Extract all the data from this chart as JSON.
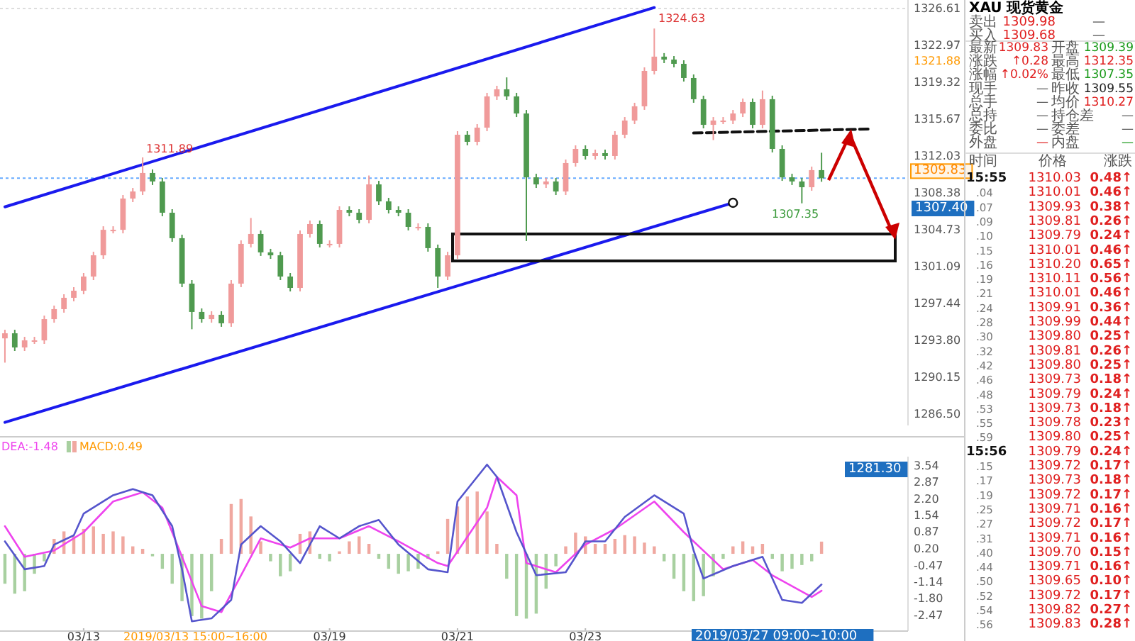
{
  "chart_data": [
    {
      "type": "candlestick",
      "ylim": [
        1285.39,
        1327.45
      ],
      "tick_labels": "y",
      "yticks": [
        {
          "value": 1286.5,
          "label": "1286.50"
        },
        1290.15,
        {
          "value": 1293.8,
          "label": "1293.80"
        },
        1297.44,
        1301.09,
        1304.73,
        1308.38,
        1312.03,
        1315.67,
        1319.32,
        1322.97,
        1326.61
      ],
      "ohlc": [
        [
          1294.0,
          1294.85,
          1291.6,
          1294.5
        ],
        [
          1294.5,
          1294.85,
          1292.75,
          1293.1
        ],
        [
          1293.1,
          1294.15,
          1292.75,
          1293.8
        ],
        [
          1293.8,
          1294.15,
          1293.45,
          1293.8
        ],
        [
          1293.8,
          1296.25,
          1293.45,
          1295.9
        ],
        [
          1295.9,
          1297.24,
          1295.55,
          1296.89
        ],
        [
          1296.89,
          1298.36,
          1296.54,
          1298.01
        ],
        [
          1298.01,
          1299.06,
          1297.66,
          1298.71
        ],
        [
          1298.71,
          1300.46,
          1298.36,
          1300.11
        ],
        [
          1300.11,
          1302.56,
          1299.76,
          1302.21
        ],
        [
          1302.21,
          1305.08,
          1301.86,
          1304.73
        ],
        [
          1304.73,
          1305.08,
          1304.38,
          1304.73
        ],
        [
          1304.73,
          1308.17,
          1304.38,
          1307.82
        ],
        [
          1307.82,
          1308.87,
          1307.47,
          1308.52
        ],
        [
          1308.52,
          1311.89,
          1308.17,
          1310.35
        ],
        [
          1310.35,
          1310.7,
          1309.16,
          1309.51
        ],
        [
          1309.51,
          1309.86,
          1306.07,
          1306.42
        ],
        [
          1306.42,
          1306.77,
          1303.55,
          1303.9
        ],
        [
          1303.9,
          1304.25,
          1299.06,
          1299.41
        ],
        [
          1299.41,
          1299.76,
          1294.9,
          1296.61
        ],
        [
          1296.61,
          1296.96,
          1295.55,
          1295.9
        ],
        [
          1295.9,
          1296.68,
          1295.55,
          1296.33
        ],
        [
          1296.33,
          1296.68,
          1295.14,
          1295.49
        ],
        [
          1295.49,
          1299.76,
          1295.14,
          1299.41
        ],
        [
          1299.41,
          1303.69,
          1299.06,
          1303.34
        ],
        [
          1303.34,
          1305.9,
          1302.99,
          1304.32
        ],
        [
          1304.32,
          1304.67,
          1302.15,
          1302.5
        ],
        [
          1302.5,
          1302.85,
          1301.86,
          1302.21
        ],
        [
          1302.21,
          1302.56,
          1299.76,
          1300.11
        ],
        [
          1300.11,
          1300.46,
          1298.64,
          1298.99
        ],
        [
          1298.99,
          1304.67,
          1298.64,
          1304.32
        ],
        [
          1304.32,
          1305.65,
          1303.97,
          1305.3
        ],
        [
          1305.3,
          1305.65,
          1302.99,
          1303.34
        ],
        [
          1303.34,
          1303.69,
          1302.99,
          1303.34
        ],
        [
          1303.34,
          1307.05,
          1302.99,
          1306.7
        ],
        [
          1306.7,
          1307.05,
          1306.07,
          1306.42
        ],
        [
          1306.42,
          1306.77,
          1305.37,
          1305.72
        ],
        [
          1305.72,
          1310.1,
          1305.37,
          1309.22
        ],
        [
          1309.22,
          1309.57,
          1307.19,
          1307.54
        ],
        [
          1307.54,
          1307.89,
          1306.35,
          1306.7
        ],
        [
          1306.7,
          1307.05,
          1306.07,
          1306.42
        ],
        [
          1306.42,
          1306.77,
          1304.67,
          1305.02
        ],
        [
          1305.02,
          1305.37,
          1304.67,
          1305.02
        ],
        [
          1305.02,
          1305.37,
          1302.57,
          1302.92
        ],
        [
          1302.92,
          1303.27,
          1298.99,
          1300.11
        ],
        [
          1300.11,
          1302.56,
          1299.76,
          1302.21
        ],
        [
          1302.21,
          1314.48,
          1301.86,
          1314.13
        ],
        [
          1314.13,
          1314.48,
          1313.08,
          1313.43
        ],
        [
          1313.43,
          1315.18,
          1313.08,
          1314.83
        ],
        [
          1314.83,
          1318.27,
          1314.48,
          1317.92
        ],
        [
          1317.92,
          1318.97,
          1317.57,
          1318.62
        ],
        [
          1318.62,
          1319.8,
          1317.57,
          1317.92
        ],
        [
          1317.92,
          1318.27,
          1315.88,
          1316.23
        ],
        [
          1316.23,
          1316.58,
          1303.62,
          1309.92
        ],
        [
          1309.92,
          1310.27,
          1308.87,
          1309.22
        ],
        [
          1309.22,
          1309.86,
          1308.87,
          1309.51
        ],
        [
          1309.51,
          1309.86,
          1308.17,
          1308.52
        ],
        [
          1308.52,
          1311.68,
          1308.17,
          1311.33
        ],
        [
          1311.33,
          1313.08,
          1310.98,
          1312.73
        ],
        [
          1312.73,
          1313.08,
          1311.68,
          1312.03
        ],
        [
          1312.03,
          1312.66,
          1311.68,
          1312.31
        ],
        [
          1312.31,
          1312.66,
          1311.68,
          1312.03
        ],
        [
          1312.03,
          1314.48,
          1311.68,
          1314.13
        ],
        [
          1314.13,
          1315.88,
          1313.78,
          1315.53
        ],
        [
          1315.53,
          1317.29,
          1315.18,
          1316.94
        ],
        [
          1316.94,
          1320.79,
          1316.59,
          1320.44
        ],
        [
          1320.44,
          1324.63,
          1320.09,
          1321.85
        ],
        [
          1321.85,
          1322.2,
          1321.21,
          1321.56
        ],
        [
          1321.56,
          1321.91,
          1320.79,
          1321.14
        ],
        [
          1321.14,
          1321.49,
          1319.39,
          1319.74
        ],
        [
          1319.74,
          1320.09,
          1317.29,
          1317.64
        ],
        [
          1317.64,
          1317.99,
          1314.76,
          1315.11
        ],
        [
          1315.11,
          1315.88,
          1313.6,
          1315.53
        ],
        [
          1315.53,
          1315.88,
          1315.18,
          1315.53
        ],
        [
          1315.53,
          1316.58,
          1315.18,
          1316.23
        ],
        [
          1316.23,
          1317.71,
          1315.88,
          1317.36
        ],
        [
          1317.36,
          1317.71,
          1314.76,
          1315.11
        ],
        [
          1315.11,
          1318.5,
          1314.76,
          1317.64
        ],
        [
          1317.64,
          1317.99,
          1312.38,
          1312.73
        ],
        [
          1312.73,
          1313.08,
          1309.57,
          1309.92
        ],
        [
          1309.92,
          1310.27,
          1309.16,
          1309.51
        ],
        [
          1309.51,
          1309.86,
          1307.35,
          1308.94
        ],
        [
          1308.94,
          1310.98,
          1308.59,
          1310.63
        ],
        [
          1310.63,
          1312.35,
          1309.48,
          1309.83
        ],
        null,
        null,
        null,
        null,
        null,
        null,
        null,
        null
      ],
      "series": [
        {
          "type": "line",
          "color": "#1a1aee",
          "values": [
            1307.0,
            null,
            null,
            null,
            null,
            null,
            null,
            null,
            null,
            null,
            null,
            null,
            null,
            null,
            null,
            null,
            null,
            null,
            null,
            null,
            null,
            null,
            null,
            null,
            null,
            null,
            null,
            null,
            null,
            null,
            null,
            null,
            null,
            null,
            null,
            null,
            null,
            null,
            null,
            null,
            null,
            null,
            null,
            null,
            null,
            null,
            null,
            null,
            null,
            null,
            null,
            null,
            null,
            null,
            null,
            null,
            null,
            null,
            null,
            null,
            null,
            null,
            null,
            null,
            null,
            null,
            1326.7,
            null,
            null,
            null,
            null,
            null,
            null,
            null,
            null,
            null,
            null,
            null,
            null,
            null,
            null,
            null,
            null,
            null,
            null,
            null,
            null,
            null,
            null,
            null,
            null,
            null
          ]
        },
        {
          "type": "line",
          "color": "#1a1aee",
          "marker": "circle",
          "values": [
            1285.7,
            null,
            null,
            null,
            null,
            null,
            null,
            null,
            null,
            null,
            null,
            null,
            null,
            null,
            null,
            null,
            null,
            null,
            null,
            null,
            null,
            null,
            null,
            null,
            null,
            null,
            null,
            null,
            null,
            null,
            null,
            null,
            null,
            null,
            null,
            null,
            null,
            null,
            null,
            null,
            null,
            null,
            null,
            null,
            null,
            null,
            null,
            null,
            null,
            null,
            null,
            null,
            null,
            null,
            null,
            null,
            null,
            null,
            null,
            null,
            null,
            null,
            null,
            null,
            null,
            null,
            null,
            null,
            null,
            null,
            null,
            null,
            null,
            null,
            1307.4,
            null,
            null,
            null,
            null,
            null,
            null,
            null,
            null,
            null,
            null,
            null,
            null,
            null,
            null,
            null,
            null,
            null
          ]
        },
        {
          "type": "line",
          "color": "#111111",
          "line_style": "dashed",
          "values": [
            null,
            null,
            null,
            null,
            null,
            null,
            null,
            null,
            null,
            null,
            null,
            null,
            null,
            null,
            null,
            null,
            null,
            null,
            null,
            null,
            null,
            null,
            null,
            null,
            null,
            null,
            null,
            null,
            null,
            null,
            null,
            null,
            null,
            null,
            null,
            null,
            null,
            null,
            null,
            null,
            null,
            null,
            null,
            null,
            null,
            null,
            null,
            null,
            null,
            null,
            null,
            null,
            null,
            null,
            null,
            null,
            null,
            null,
            null,
            null,
            null,
            null,
            null,
            null,
            null,
            null,
            null,
            null,
            null,
            null,
            1314.3,
            null,
            null,
            null,
            null,
            null,
            null,
            null,
            null,
            null,
            null,
            null,
            null,
            null,
            null,
            null,
            null,
            null,
            1314.7,
            null,
            null,
            null
          ]
        }
      ],
      "ref_lines": [
        {
          "axis": "y",
          "value": 1309.83,
          "label": "1309.83",
          "color": "#66aaff",
          "line_style": "dotted"
        }
      ],
      "annotations": [
        "1311.89",
        "1324.63",
        "1307.35",
        "1321.88",
        "1307.40"
      ]
    },
    {
      "type": "bar",
      "ylim": [
        -3.1,
        3.9
      ],
      "legend": "top left",
      "yticks": [
        3.54,
        2.87,
        {
          "value": 2.2,
          "label": "2.20"
        },
        1.54,
        0.87,
        {
          "value": 0.2,
          "label": "0.20"
        },
        -0.47,
        -1.14,
        {
          "value": -1.8,
          "label": "-1.80"
        },
        -2.47
      ],
      "categories": [
        null,
        null,
        null,
        null,
        null,
        null,
        null,
        null,
        "03/13",
        null,
        null,
        null,
        null,
        null,
        null,
        null,
        null,
        null,
        null,
        null,
        null,
        null,
        null,
        null,
        null,
        null,
        null,
        null,
        null,
        null,
        null,
        null,
        null,
        "03/19",
        null,
        null,
        null,
        null,
        null,
        null,
        null,
        null,
        null,
        null,
        null,
        null,
        "03/21",
        null,
        null,
        null,
        null,
        null,
        null,
        null,
        null,
        null,
        null,
        null,
        null,
        "03/23",
        null,
        null,
        null,
        null,
        null,
        null,
        null,
        null,
        null,
        null,
        null,
        null,
        null,
        null,
        null,
        null,
        null,
        null,
        null,
        null,
        null,
        null,
        null,
        null,
        null,
        null,
        null,
        null,
        null,
        null,
        null,
        null
      ],
      "series": [
        {
          "name": "DEA:-1.48",
          "type": "line",
          "color": "#ee44ee",
          "values": [
            1.11,
            null,
            -0.12,
            null,
            null,
            0.13,
            null,
            null,
            0.87,
            null,
            null,
            2.1,
            null,
            null,
            2.47,
            null,
            1.85,
            null,
            -0.12,
            null,
            -2.1,
            null,
            -2.34,
            null,
            -0.86,
            null,
            0.62,
            null,
            null,
            0.25,
            null,
            0.62,
            null,
            null,
            0.62,
            null,
            null,
            1.11,
            null,
            null,
            0.5,
            null,
            null,
            null,
            -0.37,
            -0.49,
            null,
            null,
            null,
            1.85,
            3.09,
            null,
            2.35,
            -0.37,
            null,
            null,
            -0.74,
            null,
            null,
            0.37,
            null,
            null,
            0.99,
            null,
            null,
            null,
            2.1,
            null,
            null,
            0.87,
            null,
            null,
            null,
            -0.62,
            null,
            null,
            -0.25,
            null,
            -0.86,
            null,
            null,
            null,
            -1.73,
            -1.48,
            null,
            null,
            null,
            null,
            null,
            null,
            null,
            null
          ]
        },
        {
          "name": "MACD:0.49",
          "type": "bar",
          "color": "#ff9900",
          "values": [
            -1.2,
            -1.6,
            -1.5,
            -0.8,
            -0.3,
            0.6,
            0.9,
            0.7,
            1.0,
            1.1,
            0.8,
            0.9,
            0.7,
            0.3,
            0.2,
            -0.1,
            -0.6,
            -1.2,
            -1.9,
            -2.5,
            -2.6,
            -1.5,
            0.6,
            2.0,
            2.2,
            1.5,
            0.5,
            -0.3,
            -0.9,
            -0.7,
            0.8,
            0.9,
            -0.2,
            -0.3,
            0.1,
            0.5,
            0.7,
            0.4,
            -0.2,
            -0.6,
            -0.8,
            -0.7,
            -0.6,
            -0.2,
            0.1,
            1.4,
            1.9,
            2.3,
            2.5,
            1.7,
            0.4,
            -1.0,
            -2.5,
            -2.6,
            -2.4,
            -1.4,
            -0.5,
            0.3,
            0.85,
            0.7,
            0.4,
            0.4,
            0.6,
            0.75,
            0.7,
            0.45,
            0.3,
            -0.3,
            -1.0,
            -1.5,
            -1.9,
            -1.7,
            -0.9,
            -0.2,
            0.3,
            0.5,
            0.3,
            0.4,
            -0.2,
            -0.7,
            -0.6,
            -0.45,
            -0.3,
            0.49,
            null,
            null,
            null,
            null,
            null,
            null,
            null,
            null
          ],
          "colors": [
            "#a8d0a0",
            "#a8d0a0",
            "#a8d0a0",
            "#a8d0a0",
            "#a8d0a0",
            "#f0a8a0",
            "#f0a8a0",
            "#f0a8a0",
            "#f0a8a0",
            "#f0a8a0",
            "#f0a8a0",
            "#f0a8a0",
            "#f0a8a0",
            "#f0a8a0",
            "#f0a8a0",
            "#a8d0a0",
            "#a8d0a0",
            "#a8d0a0",
            "#a8d0a0",
            "#a8d0a0",
            "#a8d0a0",
            "#a8d0a0",
            "#f0a8a0",
            "#f0a8a0",
            "#f0a8a0",
            "#f0a8a0",
            "#f0a8a0",
            "#a8d0a0",
            "#a8d0a0",
            "#a8d0a0",
            "#f0a8a0",
            "#f0a8a0",
            "#a8d0a0",
            "#a8d0a0",
            "#f0a8a0",
            "#f0a8a0",
            "#f0a8a0",
            "#f0a8a0",
            "#a8d0a0",
            "#a8d0a0",
            "#a8d0a0",
            "#a8d0a0",
            "#a8d0a0",
            "#a8d0a0",
            "#f0a8a0",
            "#f0a8a0",
            "#f0a8a0",
            "#f0a8a0",
            "#f0a8a0",
            "#f0a8a0",
            "#f0a8a0",
            "#a8d0a0",
            "#a8d0a0",
            "#a8d0a0",
            "#a8d0a0",
            "#a8d0a0",
            "#a8d0a0",
            "#f0a8a0",
            "#f0a8a0",
            "#f0a8a0",
            "#f0a8a0",
            "#f0a8a0",
            "#f0a8a0",
            "#f0a8a0",
            "#f0a8a0",
            "#f0a8a0",
            "#f0a8a0",
            "#a8d0a0",
            "#a8d0a0",
            "#a8d0a0",
            "#a8d0a0",
            "#a8d0a0",
            "#a8d0a0",
            "#a8d0a0",
            "#f0a8a0",
            "#f0a8a0",
            "#f0a8a0",
            "#f0a8a0",
            "#a8d0a0",
            "#a8d0a0",
            "#a8d0a0",
            "#a8d0a0",
            "#a8d0a0",
            "#f0a8a0",
            null,
            null,
            null,
            null,
            null,
            null,
            null,
            null
          ]
        },
        {
          "type": "line",
          "color": "#5555cc",
          "values": [
            0.5,
            null,
            -0.62,
            null,
            -0.49,
            0.37,
            null,
            0.74,
            1.61,
            null,
            null,
            2.35,
            null,
            2.6,
            null,
            2.35,
            null,
            1.11,
            -0.62,
            -2.71,
            null,
            -2.59,
            null,
            -1.85,
            0.37,
            null,
            1.11,
            null,
            0.5,
            null,
            -0.37,
            null,
            1.11,
            null,
            0.62,
            null,
            1.11,
            null,
            1.36,
            null,
            0.37,
            null,
            null,
            -0.62,
            null,
            -0.74,
            2.1,
            null,
            null,
            3.58,
            3.09,
            null,
            0.87,
            null,
            -0.86,
            null,
            null,
            -0.74,
            null,
            0.5,
            null,
            0.5,
            null,
            1.48,
            null,
            null,
            2.35,
            null,
            null,
            1.61,
            0.13,
            -0.99,
            null,
            null,
            -0.49,
            null,
            null,
            -0.12,
            null,
            -1.85,
            null,
            -1.97,
            null,
            -1.23,
            null,
            null,
            null,
            null,
            null,
            null,
            null,
            null
          ]
        }
      ],
      "annotations": [
        "2019/03/13 15:00~16:00",
        "2019/03/27 09:00~10:00",
        "1281.30"
      ]
    },
    {
      "type": "other",
      "annotations": [
        "XAU 现货黄金",
        "卖出",
        "1309.98",
        "—",
        "买入",
        "1309.68",
        "—",
        "最新",
        "1309.83",
        "开盘",
        "1309.39",
        "涨跌",
        "↑0.28",
        "最高",
        "1312.35",
        "涨幅",
        "↑0.02%",
        "最低",
        "1307.35",
        "现手",
        "—",
        "昨收",
        "1309.55",
        "总手",
        "—",
        "均价",
        "1310.27",
        "总持",
        "—",
        "持仓差",
        "—",
        "委比",
        "—",
        "委差",
        "—",
        "外盘",
        "—",
        "内盘",
        "—",
        "时间",
        "价格",
        "涨跌",
        "15:55",
        "1310.03",
        "0.48↑",
        ".04",
        "1310.01",
        "0.46↑",
        ".07",
        "1309.93",
        "0.38↑",
        ".09",
        "1309.81",
        "0.26↑",
        ".10",
        "1309.79",
        "0.24↑",
        ".15",
        "1310.01",
        "0.46↑",
        ".16",
        "1310.20",
        "0.65↑",
        ".19",
        "1310.11",
        "0.56↑",
        ".21",
        "1310.01",
        "0.46↑",
        ".24",
        "1309.91",
        "0.36↑",
        ".28",
        "1309.99",
        "0.44↑",
        ".30",
        "1309.80",
        "0.25↑",
        ".32",
        "1309.81",
        "0.26↑",
        ".42",
        "1309.80",
        "0.25↑",
        ".46",
        "1309.73",
        "0.18↑",
        ".48",
        "1309.79",
        "0.24↑",
        ".53",
        "1309.73",
        "0.18↑",
        ".55",
        "1309.78",
        "0.23↑",
        ".59",
        "1309.80",
        "0.25↑",
        "15:56",
        "1309.79",
        "0.24↑",
        ".15",
        "1309.72",
        "0.17↑",
        ".17",
        "1309.73",
        "0.18↑",
        ".19",
        "1309.72",
        "0.17↑",
        ".25",
        "1309.71",
        "0.16↑",
        ".27",
        "1309.72",
        "0.17↑",
        ".31",
        "1309.71",
        "0.16↑",
        ".40",
        "1309.70",
        "0.15↑",
        ".44",
        "1309.71",
        "0.16↑",
        ".50",
        "1309.65",
        "0.10↑",
        ".52",
        "1309.72",
        "0.17↑",
        ".54",
        "1309.82",
        "0.27↑",
        ".56",
        "1309.83",
        "0.28↑"
      ]
    }
  ]
}
